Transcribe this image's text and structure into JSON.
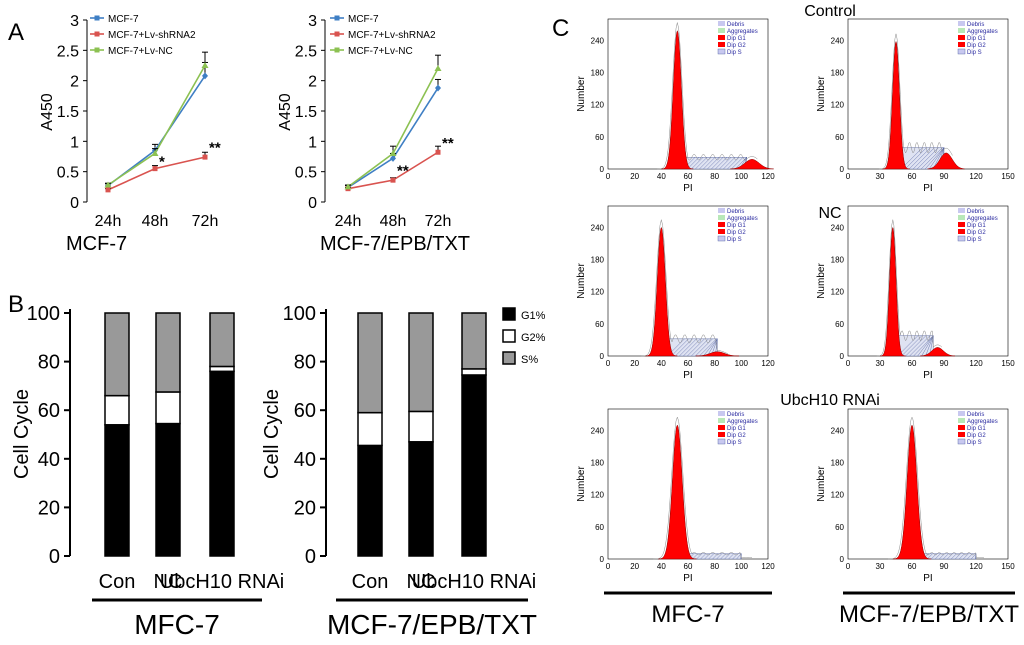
{
  "panels": {
    "A": "A",
    "B": "B",
    "C": "C"
  },
  "colors": {
    "mcf7": "#3f7fc4",
    "shrna": "#d9534f",
    "nc": "#8cc152",
    "g1": "#000000",
    "g2": "#ffffff",
    "s": "#999999",
    "flow_fill": "#ff0000",
    "flow_s": "#4a5a9c"
  },
  "chart_data": [
    {
      "id": "a_mcf7",
      "type": "line",
      "caption": "MCF-7",
      "ylabel": "A450",
      "categories": [
        "24h",
        "48h",
        "72h"
      ],
      "ylim": [
        0,
        3
      ],
      "yticks": [
        "0",
        "0.5",
        "1",
        "1.5",
        "2",
        "2.5",
        "3"
      ],
      "series": [
        {
          "name": "MCF-7",
          "color": "#3f7fc4",
          "marker": "diamond",
          "values": [
            0.27,
            0.85,
            2.08
          ],
          "errors": [
            0.03,
            0.1,
            0.22
          ]
        },
        {
          "name": "MCF-7+Lv-shRNA2",
          "color": "#d9534f",
          "marker": "square",
          "values": [
            0.2,
            0.55,
            0.74
          ],
          "errors": [
            0.02,
            0.05,
            0.08
          ]
        },
        {
          "name": "MCF-7+Lv-NC",
          "color": "#8cc152",
          "marker": "triangle",
          "values": [
            0.28,
            0.8,
            2.25
          ],
          "errors": [
            0.03,
            0.08,
            0.22
          ]
        }
      ],
      "annotations": [
        {
          "text": "*",
          "category": "48h",
          "y": 0.65
        },
        {
          "text": "**",
          "category": "72h",
          "y": 0.88
        }
      ]
    },
    {
      "id": "a_txt",
      "type": "line",
      "caption": "MCF-7/EPB/TXT",
      "ylabel": "A450",
      "categories": [
        "24h",
        "48h",
        "72h"
      ],
      "ylim": [
        0,
        3
      ],
      "yticks": [
        "0",
        "0.5",
        "1",
        "1.5",
        "2",
        "2.5",
        "3"
      ],
      "series": [
        {
          "name": "MCF-7",
          "color": "#3f7fc4",
          "marker": "diamond",
          "values": [
            0.24,
            0.72,
            1.88
          ],
          "errors": [
            0.03,
            0.08,
            0.14
          ]
        },
        {
          "name": "MCF-7+Lv-shRNA2",
          "color": "#d9534f",
          "marker": "square",
          "values": [
            0.22,
            0.36,
            0.82
          ],
          "errors": [
            0.02,
            0.04,
            0.1
          ]
        },
        {
          "name": "MCF-7+Lv-NC",
          "color": "#8cc152",
          "marker": "triangle",
          "values": [
            0.25,
            0.8,
            2.2
          ],
          "errors": [
            0.03,
            0.12,
            0.22
          ]
        }
      ],
      "annotations": [
        {
          "text": "**",
          "category": "48h",
          "y": 0.5
        },
        {
          "text": "**",
          "category": "72h",
          "y": 0.96
        }
      ]
    },
    {
      "id": "b_mfc7",
      "type": "bar",
      "stacked": true,
      "caption": "MFC-7",
      "ylabel": "Cell Cycle",
      "categories": [
        "Con",
        "NC",
        "UbcH10 RNAi"
      ],
      "ylim": [
        0,
        100
      ],
      "yticks": [
        "0",
        "20",
        "40",
        "60",
        "80",
        "100"
      ],
      "series": [
        {
          "name": "G1%",
          "color": "#000000",
          "values": [
            54,
            54.5,
            76
          ]
        },
        {
          "name": "G2%",
          "color": "#ffffff",
          "values": [
            12,
            13,
            2
          ]
        },
        {
          "name": "S%",
          "color": "#999999",
          "values": [
            34,
            32.5,
            22
          ]
        }
      ]
    },
    {
      "id": "b_txt",
      "type": "bar",
      "stacked": true,
      "caption": "MCF-7/EPB/TXT",
      "ylabel": "Cell Cycle",
      "categories": [
        "Con",
        "NC",
        "UbcH10 RNAi"
      ],
      "ylim": [
        0,
        100
      ],
      "yticks": [
        "0",
        "20",
        "40",
        "60",
        "80",
        "100"
      ],
      "legend": [
        "G1%",
        "G2%",
        "S%"
      ],
      "series": [
        {
          "name": "G1%",
          "color": "#000000",
          "values": [
            45.5,
            47,
            74.5
          ]
        },
        {
          "name": "G2%",
          "color": "#ffffff",
          "values": [
            13.5,
            12.5,
            2.5
          ]
        },
        {
          "name": "S%",
          "color": "#999999",
          "values": [
            41,
            40.5,
            23
          ]
        }
      ]
    }
  ],
  "flow": {
    "row_titles": [
      "Control",
      "NC",
      "UbcH10 RNAi"
    ],
    "column_captions": [
      "MFC-7",
      "MCF-7/EPB/TXT"
    ],
    "ylabel": "Number",
    "xlabel": "PI",
    "yticks": [
      "0",
      "60",
      "120",
      "180",
      "240"
    ],
    "legend": [
      "Debris",
      "Aggregates",
      "Dip G1",
      "Dip G2",
      "Dip S"
    ],
    "legend_colors": [
      "#c8c8f0",
      "#b8e8b8",
      "#ff0000",
      "#ff0000",
      "#c8c8f0"
    ],
    "plots": [
      {
        "row": 0,
        "col": 0,
        "xmax": 120,
        "xticks": [
          "0",
          "20",
          "40",
          "60",
          "80",
          "100",
          "120"
        ],
        "g1_mean": 52,
        "g1_sd": 3,
        "g1_peak": 258,
        "s_end": 104,
        "s_level": 22,
        "g2_mean": 108,
        "g2_peak": 18
      },
      {
        "row": 0,
        "col": 1,
        "xmax": 150,
        "xticks": [
          "0",
          "30",
          "60",
          "90",
          "120",
          "150"
        ],
        "g1_mean": 45,
        "g1_sd": 3.2,
        "g1_peak": 238,
        "s_end": 90,
        "s_level": 40,
        "g2_mean": 92,
        "g2_peak": 30
      },
      {
        "row": 1,
        "col": 0,
        "xmax": 120,
        "xticks": [
          "0",
          "20",
          "40",
          "60",
          "80",
          "100",
          "120"
        ],
        "g1_mean": 40,
        "g1_sd": 3,
        "g1_peak": 240,
        "s_end": 82,
        "s_level": 32,
        "g2_mean": 82,
        "g2_peak": 8
      },
      {
        "row": 1,
        "col": 1,
        "xmax": 150,
        "xticks": [
          "0",
          "30",
          "60",
          "90",
          "120",
          "150"
        ],
        "g1_mean": 42,
        "g1_sd": 3,
        "g1_peak": 240,
        "s_end": 80,
        "s_level": 38,
        "g2_mean": 84,
        "g2_peak": 16
      },
      {
        "row": 2,
        "col": 0,
        "xmax": 120,
        "xticks": [
          "0",
          "20",
          "40",
          "60",
          "80",
          "100",
          "120"
        ],
        "g1_mean": 52,
        "g1_sd": 3.6,
        "g1_peak": 250,
        "s_end": 100,
        "s_level": 10,
        "g2_mean": 104,
        "g2_peak": 2
      },
      {
        "row": 2,
        "col": 1,
        "xmax": 150,
        "xticks": [
          "0",
          "30",
          "60",
          "90",
          "120",
          "150"
        ],
        "g1_mean": 60,
        "g1_sd": 4.5,
        "g1_peak": 250,
        "s_end": 120,
        "s_level": 10,
        "g2_mean": 122,
        "g2_peak": 2
      }
    ]
  }
}
